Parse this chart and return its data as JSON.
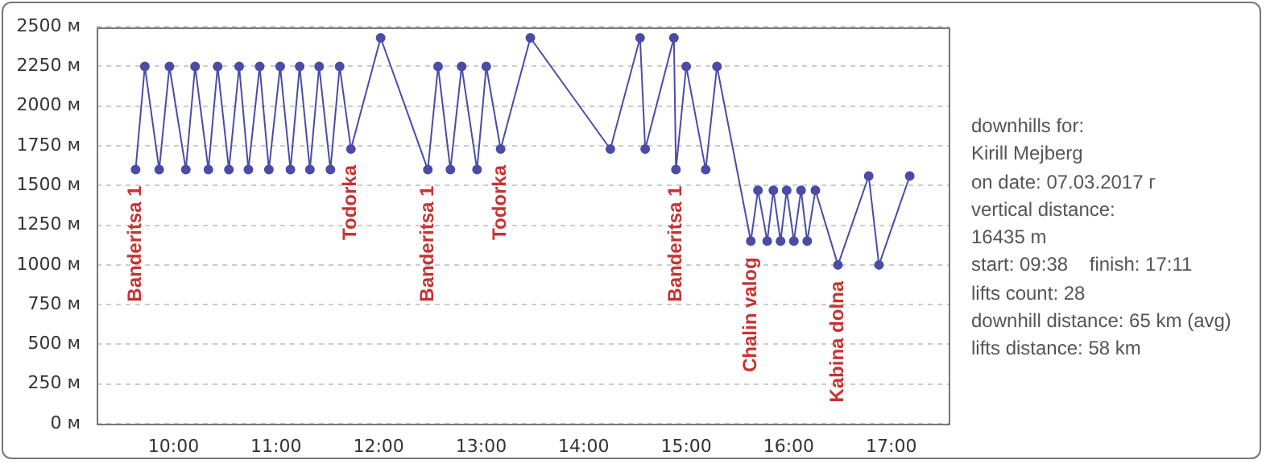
{
  "chart_data": {
    "type": "line",
    "color": "#4b4ba8",
    "marker": "circle",
    "grid": "y",
    "legend": false,
    "x": [
      9.63,
      9.72,
      9.86,
      9.96,
      10.12,
      10.21,
      10.34,
      10.43,
      10.54,
      10.64,
      10.73,
      10.84,
      10.93,
      11.04,
      11.14,
      11.23,
      11.33,
      11.42,
      11.53,
      11.62,
      11.73,
      12.02,
      12.48,
      12.58,
      12.7,
      12.81,
      12.96,
      13.05,
      13.19,
      13.48,
      14.26,
      14.55,
      14.6,
      14.88,
      14.9,
      15.0,
      15.19,
      15.3,
      15.63,
      15.7,
      15.79,
      15.85,
      15.92,
      15.98,
      16.05,
      16.12,
      16.18,
      16.26,
      16.48,
      16.78,
      16.88,
      17.18
    ],
    "values": [
      1600,
      2250,
      1600,
      2250,
      1600,
      2250,
      1600,
      2250,
      1600,
      2250,
      1600,
      2250,
      1600,
      2250,
      1600,
      2250,
      1600,
      2250,
      1600,
      2250,
      1730,
      2430,
      1600,
      2250,
      1600,
      2250,
      1600,
      2250,
      1730,
      2430,
      1730,
      2430,
      1730,
      2430,
      1600,
      2250,
      1600,
      2250,
      1150,
      1470,
      1150,
      1470,
      1150,
      1470,
      1150,
      1470,
      1150,
      1470,
      1000,
      1560,
      1000,
      1560
    ],
    "xlim": [
      9.25,
      17.56
    ],
    "xticks": [
      {
        "value": 10,
        "label": "10:00"
      },
      {
        "value": 11,
        "label": "11:00"
      },
      {
        "value": 12,
        "label": "12:00"
      },
      {
        "value": 13,
        "label": "13:00"
      },
      {
        "value": 14,
        "label": "14:00"
      },
      {
        "value": 15,
        "label": "15:00"
      },
      {
        "value": 16,
        "label": "16:00"
      },
      {
        "value": 17,
        "label": "17:00"
      }
    ],
    "ylim": [
      0,
      2500
    ],
    "yticks": [
      {
        "value": 0,
        "label": "0 м"
      },
      {
        "value": 250,
        "label": "250 м"
      },
      {
        "value": 500,
        "label": "500 м"
      },
      {
        "value": 750,
        "label": "750 м"
      },
      {
        "value": 1000,
        "label": "1000 м"
      },
      {
        "value": 1250,
        "label": "1250 м"
      },
      {
        "value": 1500,
        "label": "1500 м"
      },
      {
        "value": 1750,
        "label": "1750 м"
      },
      {
        "value": 2000,
        "label": "2000 м"
      },
      {
        "value": 2250,
        "label": "2250 м"
      },
      {
        "value": 2500,
        "label": "2500 м"
      }
    ],
    "annotations": [
      {
        "text": "Banderitsa 1",
        "x": 9.63,
        "y": 1600
      },
      {
        "text": "Todorka",
        "x": 11.73,
        "y": 1730
      },
      {
        "text": "Banderitsa 1",
        "x": 12.48,
        "y": 1600
      },
      {
        "text": "Todorka",
        "x": 13.19,
        "y": 1730
      },
      {
        "text": "Banderitsa 1",
        "x": 14.9,
        "y": 1600
      },
      {
        "text": "Chalin valog",
        "x": 15.63,
        "y": 1150
      },
      {
        "text": "Kabina dolna",
        "x": 16.48,
        "y": 1000
      },
      "downhills for:",
      "Kirill Mejberg",
      "on date: 07.03.2017 г",
      "vertical distance:",
      "16435 m",
      "start: 09:38    finish: 17:11",
      "lifts count: 28",
      "downhill distance: 65 km (avg)",
      "lifts distance: 58 km"
    ]
  }
}
